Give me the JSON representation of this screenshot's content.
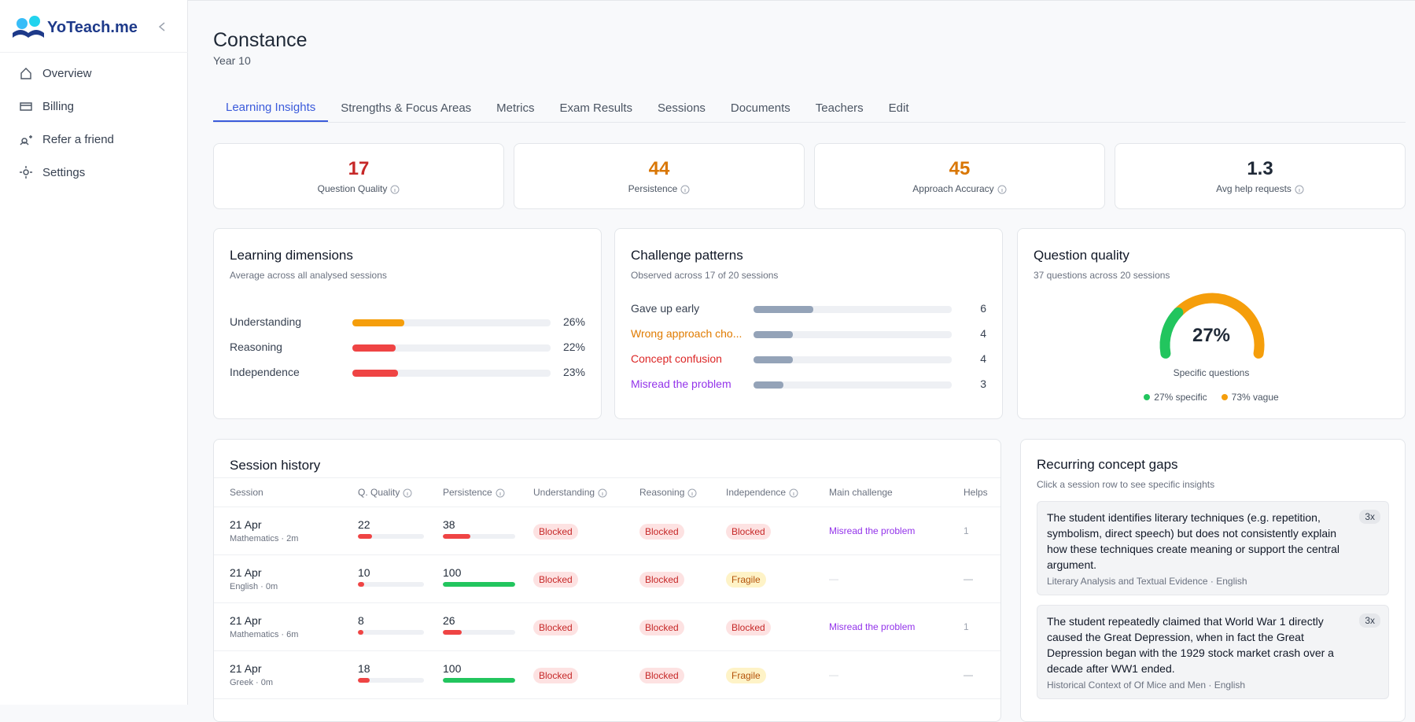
{
  "sidebar": {
    "brand": "YoTeach.me",
    "nav": [
      "Overview",
      "Billing",
      "Refer a friend",
      "Settings"
    ]
  },
  "header": {
    "name": "Constance",
    "subtitle": "Year 10"
  },
  "tabs": [
    "Learning Insights",
    "Strengths & Focus Areas",
    "Metrics",
    "Exam Results",
    "Sessions",
    "Documents",
    "Teachers",
    "Edit"
  ],
  "active_tab": 0,
  "kpis": [
    {
      "value": 17,
      "label": "Question Quality",
      "color": "#c62828"
    },
    {
      "value": 44,
      "label": "Persistence",
      "color": "#d97706"
    },
    {
      "value": 45,
      "label": "Approach Accuracy",
      "color": "#d97706"
    },
    {
      "value": 1.3,
      "label": "Avg help requests",
      "color": "#1f2937"
    }
  ],
  "learning_dimensions": {
    "title": "Learning dimensions",
    "subtitle": "Average across all analysed sessions",
    "xlim": [
      0,
      100
    ],
    "rows": [
      {
        "label": "Understanding",
        "value": 26,
        "value_label": "26%",
        "color": "#f59e0b"
      },
      {
        "label": "Reasoning",
        "value": 22,
        "value_label": "22%",
        "color": "#ef4444"
      },
      {
        "label": "Independence",
        "value": 23,
        "value_label": "23%",
        "color": "#ef4444"
      }
    ]
  },
  "challenge_patterns": {
    "title": "Challenge patterns",
    "subtitle": "Observed across 17 of 20 sessions",
    "xlim": [
      0,
      20
    ],
    "bar_color": "#94a3b8",
    "rows": [
      {
        "label": "Gave up early",
        "value": 6,
        "color": "#374151"
      },
      {
        "label": "Wrong approach cho...",
        "value": 4,
        "color": "#e07b00"
      },
      {
        "label": "Concept confusion",
        "value": 4,
        "color": "#dc2626"
      },
      {
        "label": "Misread the problem",
        "value": 3,
        "color": "#9333ea"
      }
    ]
  },
  "question_quality": {
    "title": "Question quality",
    "subtitle": "37 questions across 20 sessions",
    "value": 27,
    "value_label": "27%",
    "caption": "Specific questions",
    "colors": [
      "#22c55e",
      "#f59e0b"
    ],
    "legend": [
      {
        "label": "27% specific",
        "color": "#22c55e"
      },
      {
        "label": "73% vague",
        "color": "#f59e0b"
      }
    ]
  },
  "session_history": {
    "title": "Session history",
    "xlim": [
      0,
      100
    ],
    "columns": [
      {
        "label": "Session",
        "info": false
      },
      {
        "label": "Q. Quality",
        "info": true
      },
      {
        "label": "Persistence",
        "info": true
      },
      {
        "label": "Understanding",
        "info": true
      },
      {
        "label": "Reasoning",
        "info": true
      },
      {
        "label": "Independence",
        "info": true
      },
      {
        "label": "Main challenge",
        "info": false
      },
      {
        "label": "Helps",
        "info": false
      }
    ],
    "status_styles": {
      "Blocked": {
        "bg": "#fde2e2",
        "fg": "#c62828"
      },
      "Fragile": {
        "bg": "#fef3c7",
        "fg": "#b45309"
      }
    },
    "rows": [
      {
        "date": "21 Apr",
        "meta": "Mathematics · 2m",
        "q_quality": 22,
        "q_color": "#ef4444",
        "persistence": 38,
        "p_color": "#ef4444",
        "understanding": "Blocked",
        "reasoning": "Blocked",
        "independence": "Blocked",
        "main_challenge": "Misread the problem",
        "helps": 1
      },
      {
        "date": "21 Apr",
        "meta": "English · 0m",
        "q_quality": 10,
        "q_color": "#ef4444",
        "persistence": 100,
        "p_color": "#22c55e",
        "understanding": "Blocked",
        "reasoning": "Blocked",
        "independence": "Fragile",
        "main_challenge": "—",
        "helps": "—"
      },
      {
        "date": "21 Apr",
        "meta": "Mathematics · 6m",
        "q_quality": 8,
        "q_color": "#ef4444",
        "persistence": 26,
        "p_color": "#ef4444",
        "understanding": "Blocked",
        "reasoning": "Blocked",
        "independence": "Blocked",
        "main_challenge": "Misread the problem",
        "helps": 1
      },
      {
        "date": "21 Apr",
        "meta": "Greek · 0m",
        "q_quality": 18,
        "q_color": "#ef4444",
        "persistence": 100,
        "p_color": "#22c55e",
        "understanding": "Blocked",
        "reasoning": "Blocked",
        "independence": "Fragile",
        "main_challenge": "—",
        "helps": "—"
      }
    ]
  },
  "concept_gaps": {
    "title": "Recurring concept gaps",
    "subtitle": "Click a session row to see specific insights",
    "items": [
      {
        "text": "The student identifies literary techniques (e.g. repetition, symbolism, direct speech) but does not consistently explain how these techniques create meaning or support the central argument.",
        "meta": "Literary Analysis and Textual Evidence · English",
        "count": "3x"
      },
      {
        "text": "The student repeatedly claimed that World War 1 directly caused the Great Depression, when in fact the Great Depression began with the 1929 stock market crash over a decade after WW1 ended.",
        "meta": "Historical Context of Of Mice and Men · English",
        "count": "3x"
      }
    ]
  }
}
